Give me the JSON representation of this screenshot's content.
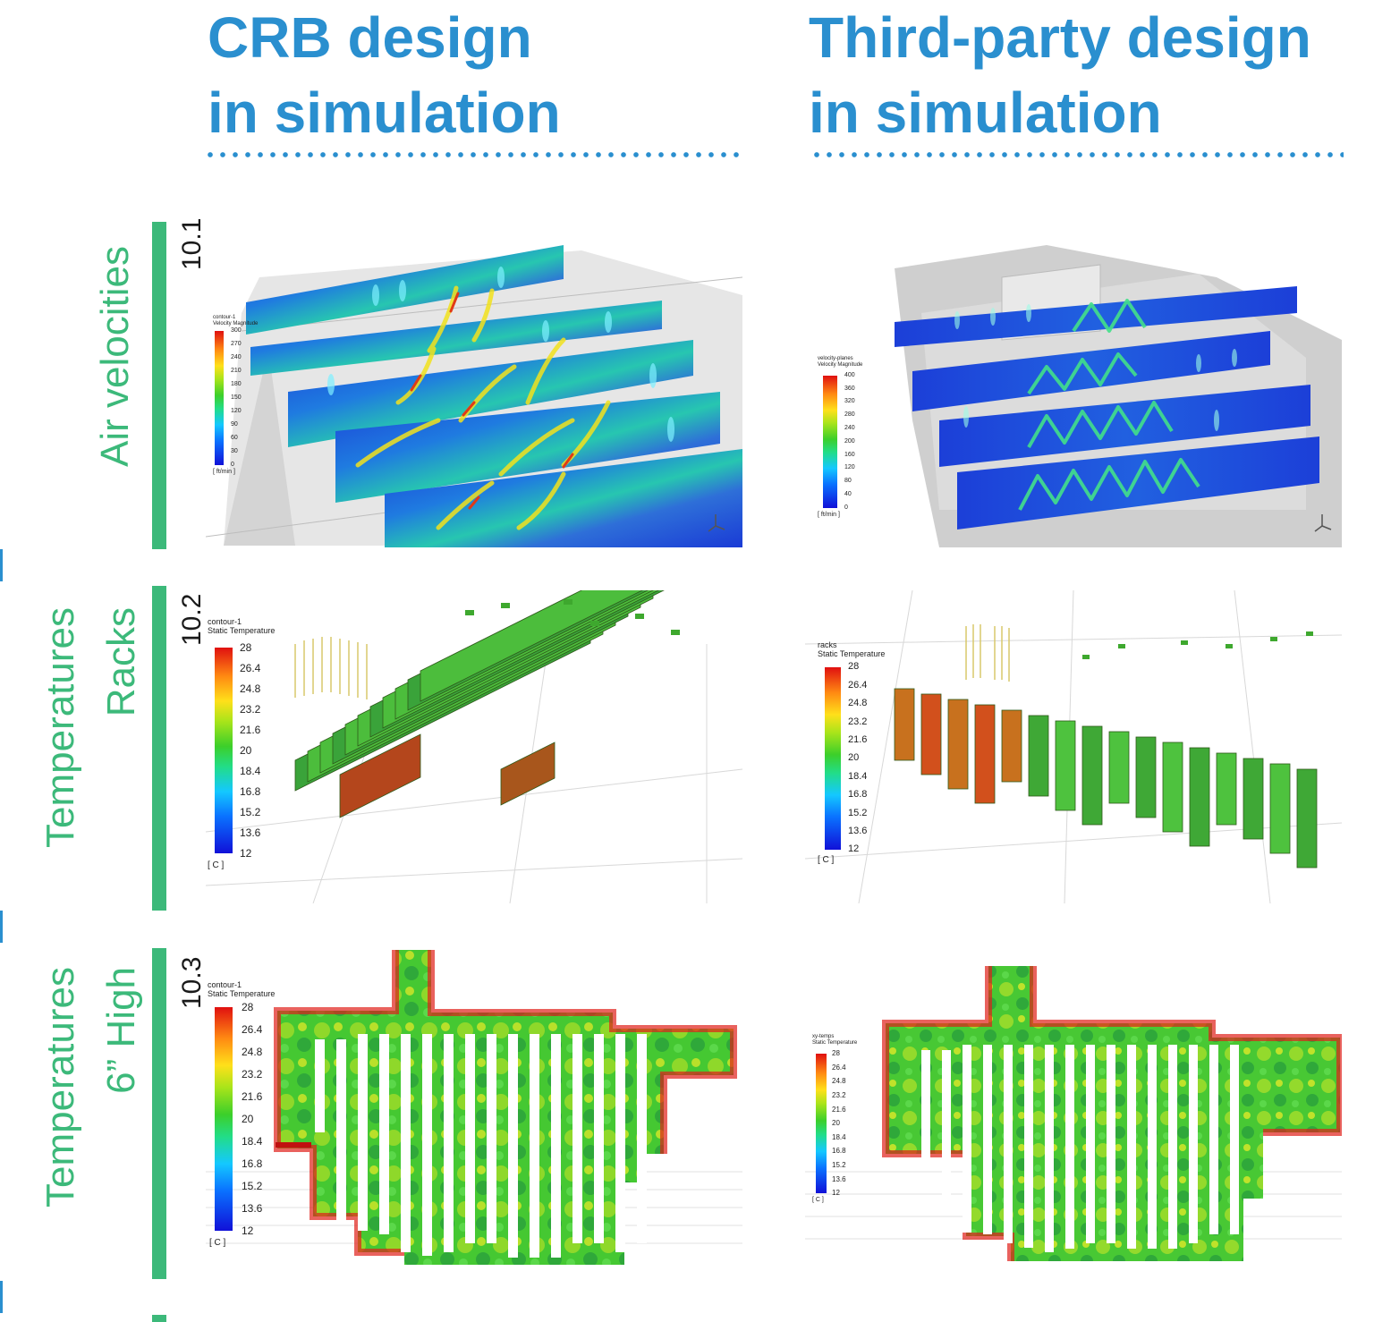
{
  "columns": [
    {
      "line1": "CRB design",
      "line2": "in simulation"
    },
    {
      "line1": "Third-party design",
      "line2": "in simulation"
    }
  ],
  "rows": [
    {
      "number": "10.1",
      "label_lines": [
        "Air velocities"
      ]
    },
    {
      "number": "10.2",
      "label_lines": [
        "Temperatures",
        "Racks"
      ]
    },
    {
      "number": "10.3",
      "label_lines": [
        "Temperatures",
        "6” High"
      ]
    }
  ],
  "legends": {
    "air_crb": {
      "title1": "contour-1",
      "title2": "Velocity Magnitude",
      "ticks": [
        "300",
        "270",
        "240",
        "210",
        "180",
        "150",
        "120",
        "90",
        "60",
        "30",
        "0"
      ],
      "unit": "[ ft/min ]"
    },
    "air_tp": {
      "title1": "velocity-planes",
      "title2": "Velocity Magnitude",
      "ticks": [
        "400",
        "360",
        "320",
        "280",
        "240",
        "200",
        "160",
        "120",
        "80",
        "40",
        "0"
      ],
      "unit": "[ ft/min ]"
    },
    "racks_crb": {
      "title1": "contour-1",
      "title2": "Static Temperature",
      "ticks": [
        "28",
        "26.4",
        "24.8",
        "23.2",
        "21.6",
        "20",
        "18.4",
        "16.8",
        "15.2",
        "13.6",
        "12"
      ],
      "unit": "[ C ]"
    },
    "racks_tp": {
      "title1": "racks",
      "title2": "Static Temperature",
      "ticks": [
        "28",
        "26.4",
        "24.8",
        "23.2",
        "21.6",
        "20",
        "18.4",
        "16.8",
        "15.2",
        "13.6",
        "12"
      ],
      "unit": "[ C ]"
    },
    "floor_crb": {
      "title1": "contour-1",
      "title2": "Static Temperature",
      "ticks": [
        "28",
        "26.4",
        "24.8",
        "23.2",
        "21.6",
        "20",
        "18.4",
        "16.8",
        "15.2",
        "13.6",
        "12"
      ],
      "unit": "[ C ]"
    },
    "floor_tp": {
      "title1": "xy-temps",
      "title2": "Static Temperature",
      "ticks": [
        "28",
        "26.4",
        "24.8",
        "23.2",
        "21.6",
        "20",
        "18.4",
        "16.8",
        "15.2",
        "13.6",
        "12"
      ],
      "unit": "[ C ]"
    }
  },
  "colors": {
    "heading_blue": "#2a8fcf",
    "label_green": "#3cb97a"
  }
}
